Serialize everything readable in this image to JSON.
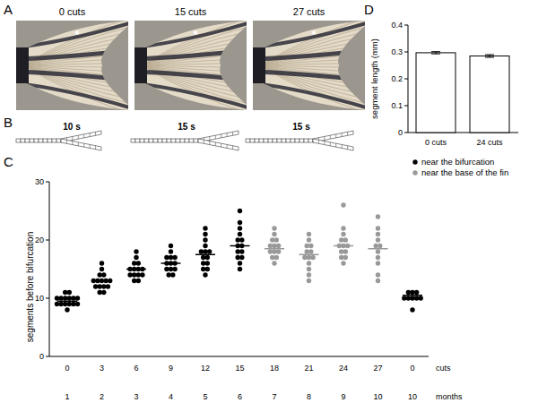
{
  "panels": {
    "A": {
      "label": "A",
      "photos": [
        {
          "caption": "0 cuts",
          "asterisk": "*"
        },
        {
          "caption": "15 cuts",
          "asterisk": "*"
        },
        {
          "caption": "27 cuts",
          "asterisk": "*"
        }
      ]
    },
    "B": {
      "label": "B",
      "rays": [
        {
          "segments": {
            "value": 10,
            "label": "10 s"
          }
        },
        {
          "segments": {
            "value": 15,
            "label": "15 s"
          }
        },
        {
          "segments": {
            "value": 15,
            "label": "15 s"
          }
        }
      ]
    }
  },
  "chart_data": [
    {
      "panel": "C",
      "type": "scatter",
      "categories": [
        "0",
        "3",
        "6",
        "9",
        "12",
        "15",
        "18",
        "21",
        "24",
        "27",
        "0"
      ],
      "category_label": "cuts",
      "months": [
        "1",
        "2",
        "3",
        "4",
        "5",
        "6",
        "7",
        "8",
        "9",
        "10",
        "10"
      ],
      "months_label": "months",
      "ylabel": "segments before bifurcation",
      "ylim": [
        0,
        30
      ],
      "yticks": [
        0,
        10,
        20,
        30
      ],
      "legend": "upper right",
      "marker": "circle",
      "series": [
        {
          "name": "near the bifurcation",
          "color": "#000000",
          "values": [
            [
              8,
              9,
              9,
              9,
              9,
              10,
              10,
              10,
              10,
              10,
              11,
              11,
              9,
              10,
              9
            ],
            [
              11,
              11,
              12,
              12,
              12,
              13,
              13,
              13,
              13,
              14,
              14,
              15,
              16,
              12,
              13
            ],
            [
              13,
              13,
              14,
              14,
              14,
              15,
              15,
              15,
              16,
              16,
              17,
              18,
              14,
              15
            ],
            [
              14,
              14,
              15,
              15,
              15,
              16,
              16,
              16,
              17,
              17,
              17,
              18,
              19
            ],
            [
              14,
              15,
              15,
              16,
              16,
              17,
              17,
              18,
              18,
              18,
              19,
              20,
              21,
              22
            ],
            [
              15,
              16,
              17,
              17,
              18,
              18,
              19,
              19,
              20,
              20,
              21,
              22,
              23,
              25
            ],
            null,
            null,
            null,
            null,
            [
              8,
              10,
              10,
              10,
              10,
              10,
              11,
              11,
              11
            ]
          ],
          "means": [
            9.5,
            13,
            15,
            16,
            17.5,
            19,
            null,
            null,
            null,
            null,
            10.5
          ]
        },
        {
          "name": "near the base of the fin",
          "color": "#999999",
          "values": [
            null,
            null,
            null,
            null,
            null,
            null,
            [
              16,
              17,
              17,
              18,
              18,
              18,
              19,
              19,
              19,
              20,
              20,
              21,
              22
            ],
            [
              13,
              14,
              15,
              16,
              17,
              17,
              17,
              18,
              18,
              19,
              19,
              20,
              21
            ],
            [
              16,
              17,
              17,
              18,
              18,
              19,
              19,
              19,
              20,
              20,
              21,
              22,
              26
            ],
            [
              13,
              14,
              16,
              17,
              18,
              19,
              19,
              20,
              21,
              22,
              24
            ],
            null
          ],
          "means": [
            null,
            null,
            null,
            null,
            null,
            null,
            18.5,
            17.5,
            19,
            18.5,
            null
          ]
        }
      ]
    },
    {
      "panel": "D",
      "type": "bar",
      "categories": [
        "0 cuts",
        "24 cuts"
      ],
      "values": [
        0.297,
        0.285
      ],
      "errors": [
        0.004,
        0.005
      ],
      "color": "#ffffff",
      "ylabel": "segment length (mm)",
      "ylim": [
        0,
        0.4
      ],
      "yticks": [
        0,
        0.1,
        0.2,
        0.3,
        0.4
      ]
    }
  ]
}
